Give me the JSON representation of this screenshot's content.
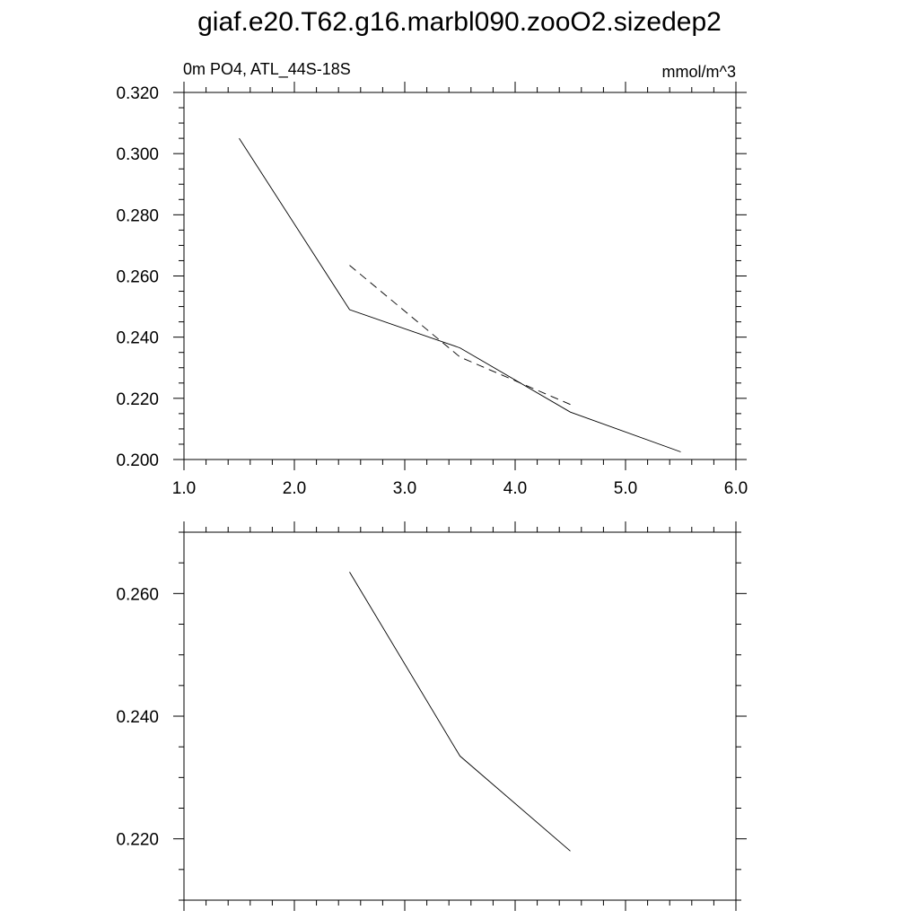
{
  "title": "giaf.e20.T62.g16.marbl090.zooO2.sizedep2",
  "chart_data": [
    {
      "type": "line",
      "left_label": "0m PO4, ATL_44S-18S",
      "right_label": "mmol/m^3",
      "xlim": [
        1.0,
        6.0
      ],
      "ylim": [
        0.2,
        0.32
      ],
      "x_ticks": [
        "1.0",
        "2.0",
        "3.0",
        "4.0",
        "5.0",
        "6.0"
      ],
      "y_ticks": [
        "0.200",
        "0.220",
        "0.240",
        "0.260",
        "0.280",
        "0.300",
        "0.320"
      ],
      "series": [
        {
          "style": "solid",
          "x": [
            1.5,
            2.5,
            3.5,
            4.5,
            5.5
          ],
          "y": [
            0.305,
            0.249,
            0.2365,
            0.2155,
            0.2025
          ]
        },
        {
          "style": "dashed",
          "x": [
            2.5,
            3.5,
            4.5
          ],
          "y": [
            0.2635,
            0.2335,
            0.218
          ]
        }
      ]
    },
    {
      "type": "line",
      "xlim": [
        1.0,
        6.0
      ],
      "ylim": [
        0.21,
        0.27
      ],
      "y_ticks": [
        "0.220",
        "0.240",
        "0.260"
      ],
      "series": [
        {
          "style": "solid",
          "x": [
            2.5,
            3.5,
            4.5
          ],
          "y": [
            0.2635,
            0.2335,
            0.218
          ]
        }
      ]
    }
  ]
}
